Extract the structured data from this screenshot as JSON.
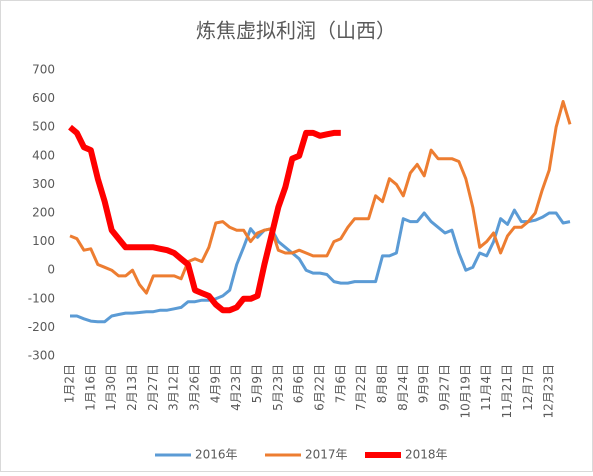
{
  "chart_data": {
    "type": "line",
    "title": "炼焦虚拟利润（山西）",
    "categories": [
      "1月2日",
      null,
      null,
      "1月16日",
      null,
      null,
      "1月30日",
      null,
      null,
      "2月13日",
      null,
      null,
      "2月27日",
      null,
      null,
      "3月12日",
      null,
      null,
      "3月26日",
      null,
      null,
      "4月9日",
      null,
      null,
      "4月23日",
      null,
      null,
      "5月9日",
      null,
      null,
      "5月23日",
      null,
      null,
      "6月6日",
      null,
      null,
      "6月22日",
      null,
      null,
      "7月6日",
      null,
      null,
      "7月22日",
      null,
      null,
      "8月8日",
      null,
      null,
      "8月24日",
      null,
      null,
      "9月9日",
      null,
      null,
      "9月27日",
      null,
      null,
      "10月19日",
      null,
      null,
      "11月4日",
      null,
      null,
      "11月21日",
      null,
      null,
      "12月7日",
      null,
      null,
      "12月23日",
      null,
      null,
      null
    ],
    "series": [
      {
        "name": "2016年",
        "color": "#5b9bd5",
        "values": [
          -160,
          -160,
          -170,
          -178,
          -180,
          -180,
          -160,
          -155,
          -150,
          -150,
          -148,
          -145,
          -145,
          -140,
          -140,
          -135,
          -130,
          -110,
          -110,
          -105,
          -105,
          -100,
          -90,
          -70,
          20,
          80,
          145,
          115,
          140,
          145,
          100,
          80,
          60,
          40,
          0,
          -10,
          -10,
          -15,
          -40,
          -45,
          -45,
          -40,
          -40,
          -40,
          -40,
          50,
          50,
          60,
          180,
          170,
          170,
          200,
          170,
          150,
          130,
          140,
          60,
          0,
          10,
          60,
          50,
          100,
          180,
          160,
          210,
          170,
          170,
          175,
          185,
          200,
          200,
          165,
          170
        ]
      },
      {
        "name": "2017年",
        "color": "#ed7d31",
        "values": [
          120,
          110,
          70,
          75,
          20,
          10,
          0,
          -20,
          -20,
          0,
          -50,
          -80,
          -20,
          -20,
          -20,
          -20,
          -30,
          30,
          40,
          30,
          80,
          165,
          170,
          150,
          140,
          140,
          100,
          130,
          140,
          145,
          70,
          60,
          60,
          70,
          60,
          50,
          50,
          50,
          100,
          110,
          150,
          180,
          180,
          180,
          260,
          240,
          320,
          300,
          260,
          340,
          370,
          330,
          420,
          390,
          390,
          390,
          380,
          320,
          220,
          80,
          100,
          130,
          60,
          120,
          150,
          150,
          170,
          200,
          280,
          350,
          500,
          590,
          510
        ]
      },
      {
        "name": "2018年",
        "color": "#ff0000",
        "values": [
          500,
          480,
          430,
          420,
          320,
          240,
          140,
          110,
          80,
          80,
          80,
          80,
          80,
          75,
          70,
          60,
          40,
          20,
          -70,
          -80,
          -90,
          -120,
          -140,
          -140,
          -130,
          -100,
          -100,
          -90,
          20,
          120,
          220,
          290,
          390,
          400,
          480,
          480,
          470,
          475,
          480,
          480,
          null,
          null,
          null,
          null,
          null,
          null,
          null,
          null,
          null,
          null,
          null,
          null,
          null,
          null,
          null,
          null,
          null,
          null,
          null,
          null,
          null,
          null,
          null,
          null,
          null,
          null,
          null,
          null,
          null,
          null,
          null,
          null,
          null
        ]
      }
    ],
    "ylim": [
      -300,
      700
    ],
    "yticks": [
      -300,
      -200,
      -100,
      0,
      100,
      200,
      300,
      400,
      500,
      600,
      700
    ]
  }
}
